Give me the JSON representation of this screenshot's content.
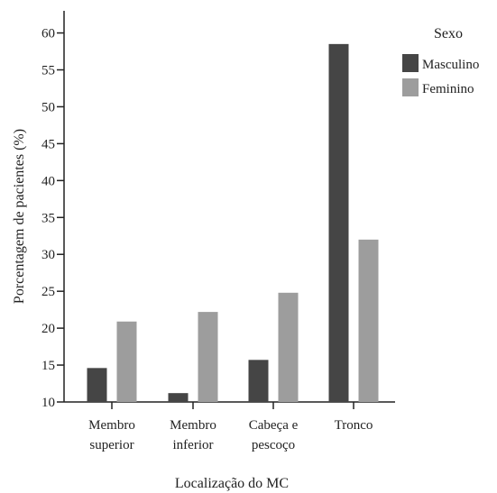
{
  "chart_data": {
    "type": "bar",
    "title": "",
    "xlabel": "Localização do MC",
    "ylabel": "Porcentagem de pacientes (%)",
    "ylim": [
      10,
      63
    ],
    "yticks": [
      10,
      15,
      20,
      25,
      30,
      35,
      40,
      45,
      50,
      55,
      60
    ],
    "categories": [
      [
        "Membro",
        "superior"
      ],
      [
        "Membro",
        "inferior"
      ],
      [
        "Cabeça e",
        "pescoço"
      ],
      [
        "Tronco"
      ]
    ],
    "legend": {
      "title": "Sexo",
      "position": "top-right"
    },
    "grid": false,
    "series": [
      {
        "name": "Masculino",
        "color": "#454545",
        "values": [
          14.6,
          11.2,
          15.7,
          58.5
        ]
      },
      {
        "name": "Feminino",
        "color": "#9d9d9d",
        "values": [
          20.9,
          22.2,
          24.8,
          32.0
        ]
      }
    ]
  }
}
